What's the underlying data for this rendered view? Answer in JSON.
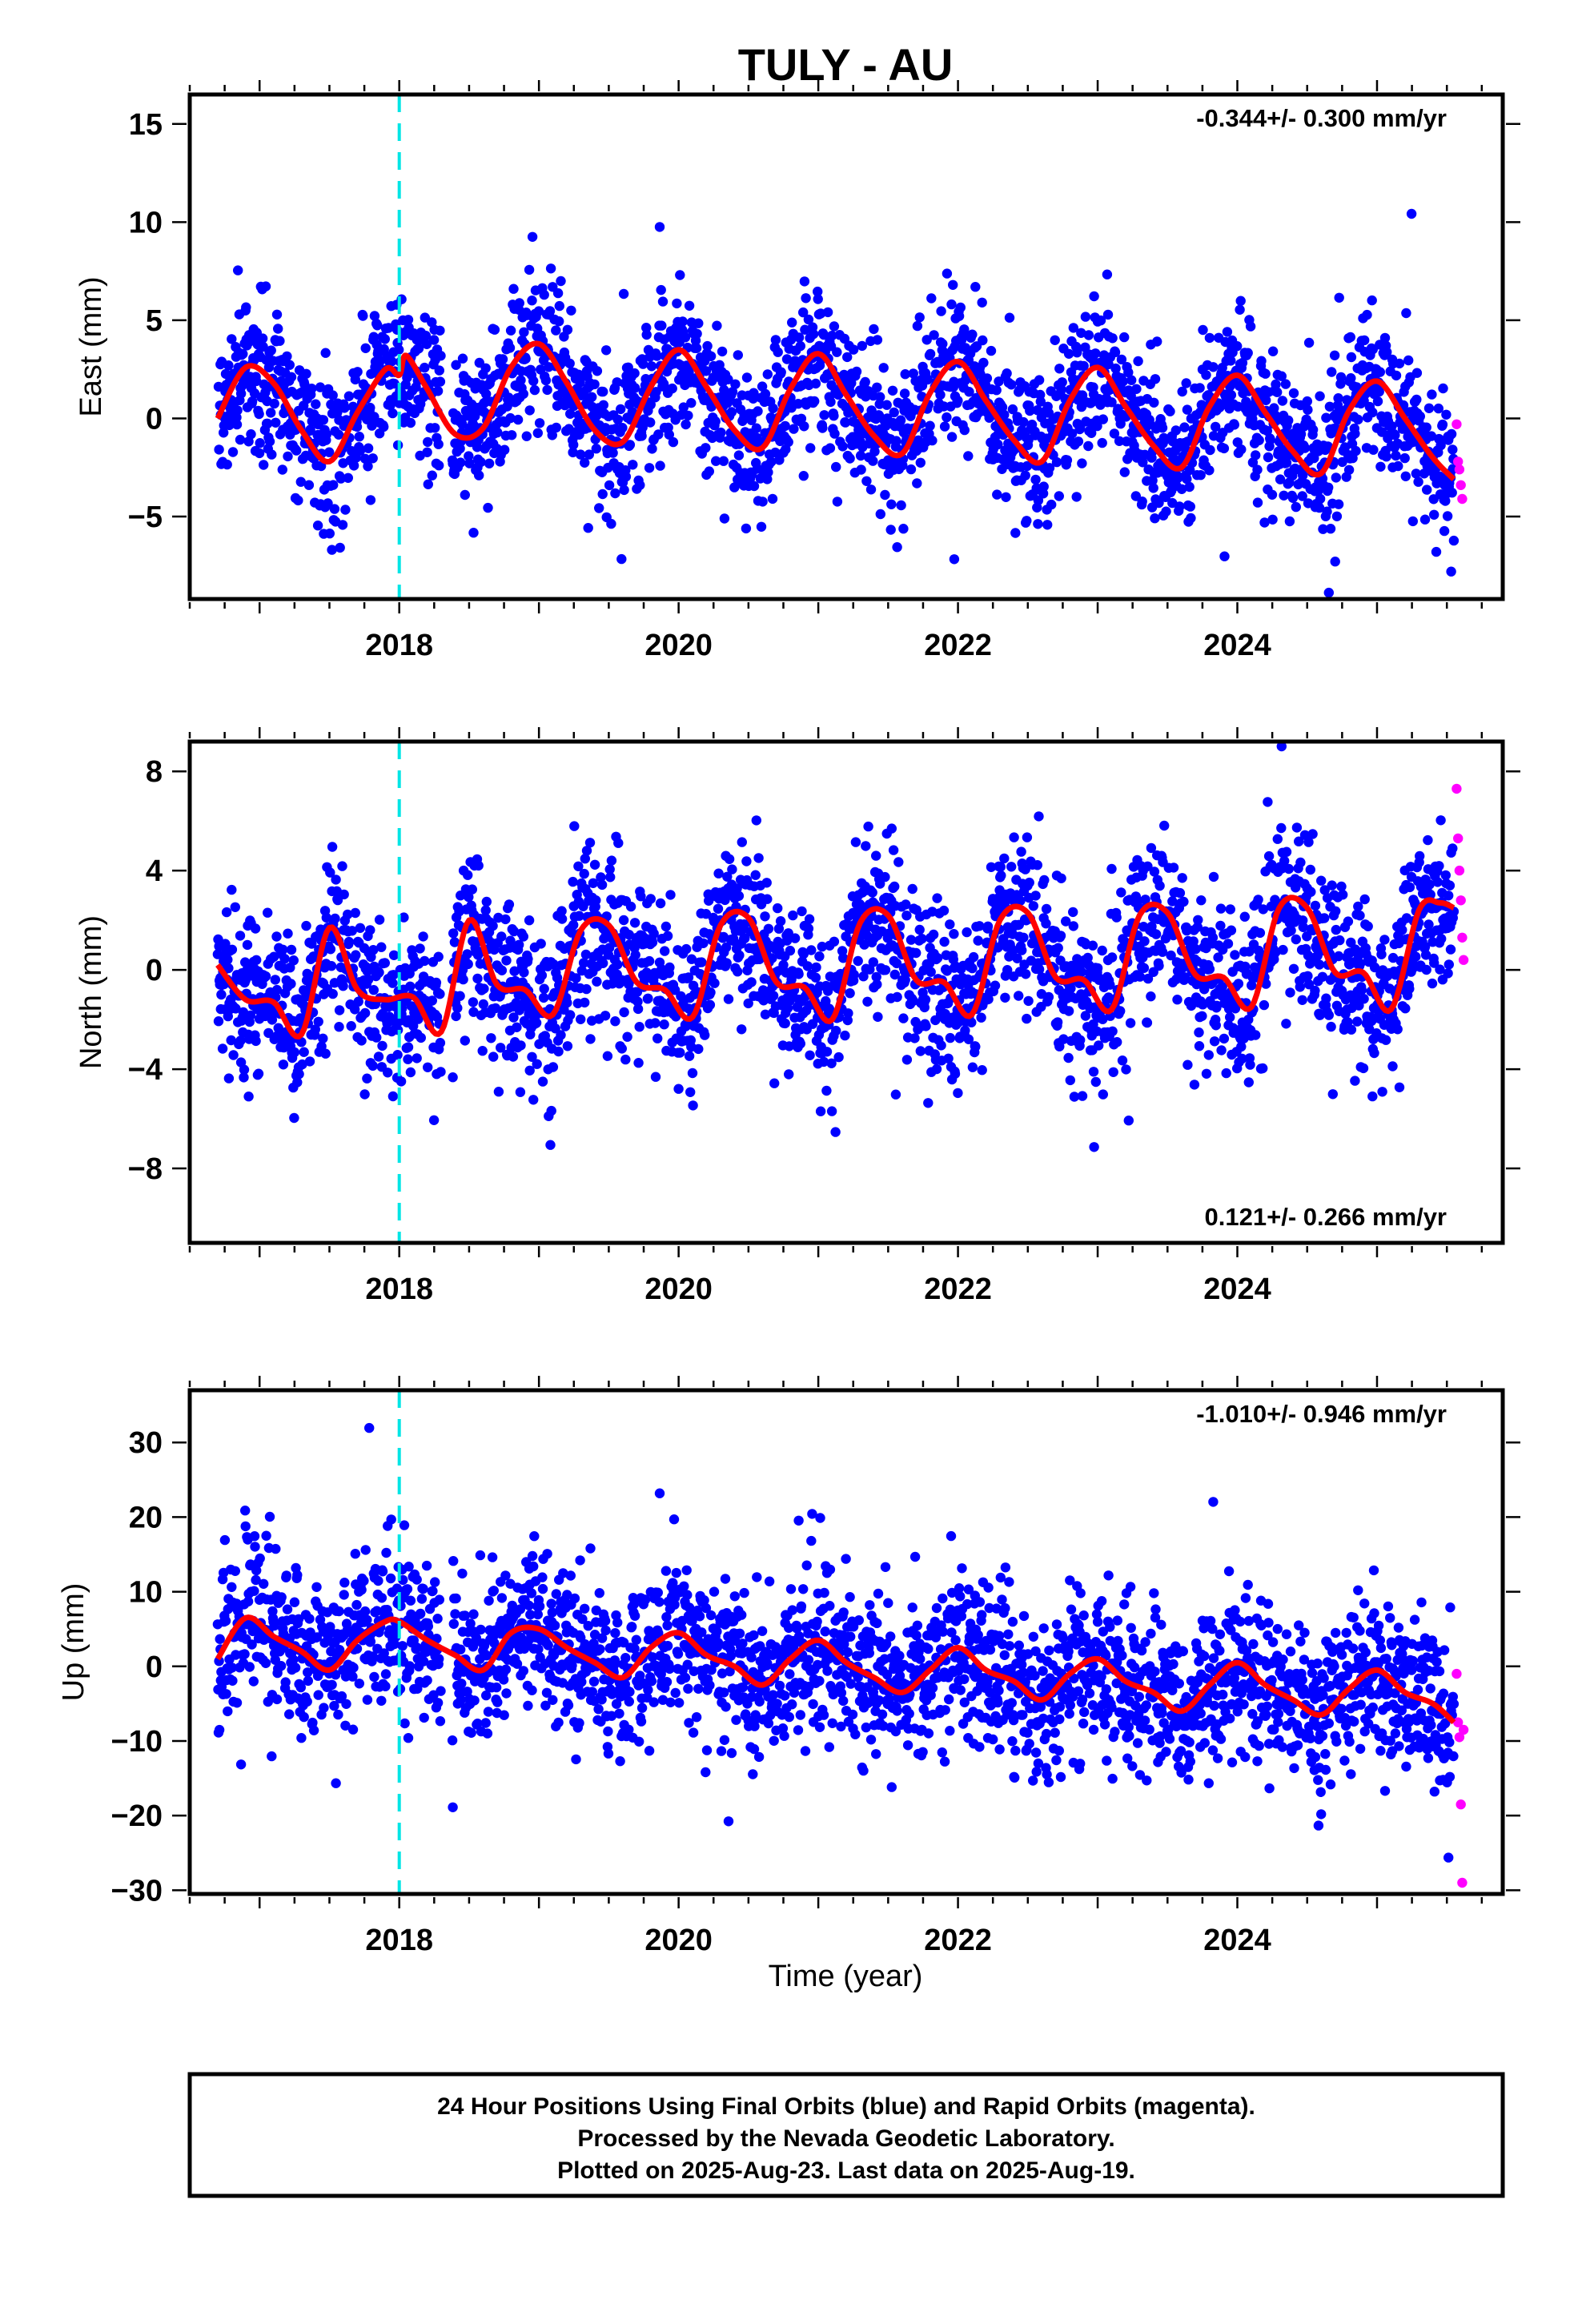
{
  "title": "TULY - AU",
  "xlabel": "Time (year)",
  "footer": {
    "line1": "24 Hour Positions Using Final Orbits (blue) and Rapid Orbits (magenta).",
    "line2": "Processed by the Nevada Geodetic Laboratory.",
    "line3": "Plotted on 2025-Aug-23. Last data on 2025-Aug-19."
  },
  "colors": {
    "final_orbits": "#0000ff",
    "rapid_orbits": "#ff00ff",
    "model_fit": "#ff0000",
    "event_line": "#00e5e5"
  },
  "chart_data": [
    {
      "type": "scatter",
      "name": "east",
      "ylabel": "East (mm)",
      "rate_label": "-0.344+/- 0.300 mm/yr",
      "rate_position": "top-right",
      "xlim": [
        2016.5,
        2025.9
      ],
      "ylim": [
        -9.2,
        16.5
      ],
      "xticks": [
        2018,
        2020,
        2022,
        2024
      ],
      "yticks": [
        -5,
        0,
        5,
        10,
        15
      ],
      "event_lines_x": [
        2018.0
      ],
      "model": {
        "x": [
          2016.7,
          2016.9,
          2017.1,
          2017.3,
          2017.5,
          2017.7,
          2017.9,
          2018.0,
          2018.05,
          2018.2,
          2018.4,
          2018.6,
          2018.8,
          2019.0,
          2019.2,
          2019.4,
          2019.6,
          2019.8,
          2020.0,
          2020.2,
          2020.4,
          2020.6,
          2020.8,
          2021.0,
          2021.2,
          2021.4,
          2021.6,
          2021.8,
          2022.0,
          2022.2,
          2022.4,
          2022.6,
          2022.8,
          2023.0,
          2023.2,
          2023.4,
          2023.6,
          2023.8,
          2024.0,
          2024.2,
          2024.4,
          2024.6,
          2024.8,
          2025.0,
          2025.2,
          2025.4,
          2025.55
        ],
        "y": [
          0.0,
          2.6,
          1.8,
          -0.6,
          -2.2,
          0.3,
          2.5,
          2.2,
          3.2,
          1.5,
          -0.8,
          -0.5,
          2.6,
          3.8,
          1.8,
          -0.6,
          -1.2,
          1.6,
          3.5,
          1.6,
          -0.6,
          -1.5,
          1.5,
          3.3,
          1.2,
          -0.9,
          -1.8,
          1.3,
          2.9,
          0.9,
          -1.1,
          -2.2,
          0.9,
          2.6,
          0.6,
          -1.4,
          -2.5,
          0.6,
          2.2,
          0.3,
          -1.7,
          -2.8,
          0.4,
          1.9,
          0.0,
          -2.0,
          -3.1
        ]
      },
      "scatter": {
        "n_points": 2750,
        "center": "model",
        "noise_sd_mm": 1.9,
        "start": 2016.7,
        "end": 2025.55,
        "gap": [
          2018.3,
          2018.38
        ]
      },
      "rapid": {
        "x": [
          2025.57,
          2025.58,
          2025.59,
          2025.6,
          2025.61
        ],
        "y": [
          -0.3,
          -2.2,
          -2.6,
          -3.4,
          -4.1
        ]
      }
    },
    {
      "type": "scatter",
      "name": "north",
      "ylabel": "North (mm)",
      "rate_label": "0.121+/- 0.266 mm/yr",
      "rate_position": "bottom-right",
      "xlim": [
        2016.5,
        2025.9
      ],
      "ylim": [
        -11.0,
        9.2
      ],
      "xticks": [
        2018,
        2020,
        2022,
        2024
      ],
      "yticks": [
        -8,
        -4,
        0,
        4,
        8
      ],
      "event_lines_x": [
        2018.0
      ],
      "model": {
        "x": [
          2016.7,
          2016.9,
          2017.1,
          2017.3,
          2017.5,
          2017.7,
          2017.9,
          2018.1,
          2018.3,
          2018.5,
          2018.7,
          2018.9,
          2019.1,
          2019.3,
          2019.5,
          2019.7,
          2019.9,
          2020.1,
          2020.3,
          2020.5,
          2020.7,
          2020.9,
          2021.1,
          2021.3,
          2021.5,
          2021.7,
          2021.9,
          2022.1,
          2022.3,
          2022.5,
          2022.7,
          2022.9,
          2023.1,
          2023.3,
          2023.5,
          2023.7,
          2023.9,
          2024.1,
          2024.3,
          2024.5,
          2024.7,
          2024.9,
          2025.1,
          2025.3,
          2025.45,
          2025.55
        ],
        "y": [
          0.2,
          -1.2,
          -1.3,
          -2.6,
          1.7,
          -0.8,
          -1.2,
          -1.1,
          -2.5,
          2.0,
          -0.6,
          -0.8,
          -1.8,
          1.6,
          1.8,
          -0.5,
          -0.8,
          -1.9,
          1.8,
          2.1,
          -0.5,
          -0.7,
          -2.0,
          1.9,
          2.2,
          -0.4,
          -0.5,
          -1.8,
          2.0,
          2.3,
          -0.3,
          -0.4,
          -1.6,
          2.2,
          2.3,
          -0.2,
          -0.3,
          -1.5,
          2.5,
          2.5,
          -0.1,
          -0.1,
          -1.6,
          2.4,
          2.7,
          2.5
        ]
      },
      "scatter": {
        "n_points": 2750,
        "center": "model",
        "noise_sd_mm": 1.6,
        "start": 2016.7,
        "end": 2025.55,
        "gap": [
          2018.3,
          2018.38
        ]
      },
      "rapid": {
        "x": [
          2025.57,
          2025.58,
          2025.59,
          2025.6,
          2025.61,
          2025.62
        ],
        "y": [
          7.3,
          5.3,
          4.0,
          2.8,
          1.3,
          0.4
        ]
      }
    },
    {
      "type": "scatter",
      "name": "up",
      "ylabel": "Up (mm)",
      "rate_label": "-1.010+/- 0.946 mm/yr",
      "rate_position": "top-right",
      "xlim": [
        2016.5,
        2025.9
      ],
      "ylim": [
        -30.5,
        37.0
      ],
      "xticks": [
        2018,
        2020,
        2022,
        2024
      ],
      "yticks": [
        -30,
        -20,
        -10,
        0,
        10,
        20,
        30
      ],
      "event_lines_x": [
        2018.0
      ],
      "model": {
        "x": [
          2016.7,
          2016.9,
          2017.1,
          2017.3,
          2017.5,
          2017.7,
          2017.9,
          2018.0,
          2018.2,
          2018.4,
          2018.6,
          2018.8,
          2019.0,
          2019.2,
          2019.4,
          2019.6,
          2019.8,
          2020.0,
          2020.2,
          2020.4,
          2020.6,
          2020.8,
          2021.0,
          2021.2,
          2021.4,
          2021.6,
          2021.8,
          2022.0,
          2022.2,
          2022.4,
          2022.6,
          2022.8,
          2023.0,
          2023.2,
          2023.4,
          2023.6,
          2023.8,
          2024.0,
          2024.2,
          2024.4,
          2024.6,
          2024.8,
          2025.0,
          2025.2,
          2025.4,
          2025.55
        ],
        "y": [
          1.0,
          6.5,
          4.0,
          2.0,
          -0.5,
          3.5,
          6.0,
          6.0,
          3.5,
          1.5,
          -0.5,
          4.5,
          5.0,
          2.5,
          0.5,
          -1.5,
          2.5,
          4.5,
          1.5,
          0.0,
          -2.5,
          1.0,
          3.5,
          0.5,
          -1.5,
          -3.5,
          -0.5,
          2.5,
          -0.5,
          -2.0,
          -4.5,
          -1.0,
          1.0,
          -2.0,
          -3.5,
          -6.0,
          -2.5,
          0.5,
          -2.5,
          -4.5,
          -6.5,
          -3.0,
          -0.5,
          -3.5,
          -5.0,
          -7.5
        ]
      },
      "scatter": {
        "n_points": 2750,
        "center": "model",
        "noise_sd_mm": 5.3,
        "start": 2016.7,
        "end": 2025.55,
        "gap": [
          2018.3,
          2018.38
        ]
      },
      "rapid": {
        "x": [
          2025.57,
          2025.58,
          2025.59,
          2025.6,
          2025.61,
          2025.62
        ],
        "y": [
          -1.0,
          -7.5,
          -9.5,
          -18.5,
          -29.0,
          -8.5
        ]
      }
    }
  ]
}
